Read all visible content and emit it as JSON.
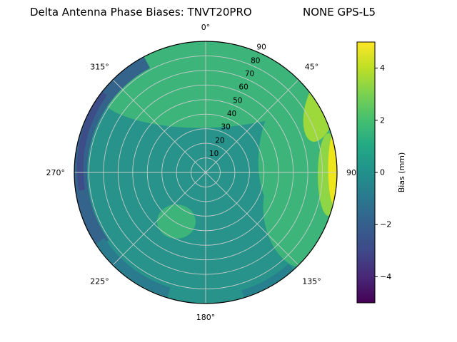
{
  "title": {
    "left": "Delta Antenna Phase Biases: TNVT20PRO",
    "right": "NONE GPS-L5"
  },
  "chart_data": {
    "type": "heatmap",
    "projection": "polar",
    "title": "Delta Antenna Phase Biases: TNVT20PRO      NONE GPS-L5",
    "antenna": "TNVT20PRO",
    "signal": "NONE GPS-L5",
    "colormap": "viridis",
    "colorbar": {
      "label": "Bias (mm)",
      "vmin": -5,
      "vmax": 5,
      "ticks": [
        {
          "value": 4,
          "label": "4"
        },
        {
          "value": 2,
          "label": "2"
        },
        {
          "value": 0,
          "label": "0"
        },
        {
          "value": -2,
          "label": "−2"
        },
        {
          "value": -4,
          "label": "−4"
        }
      ]
    },
    "angular_axis": {
      "unit": "degrees azimuth, 0 at top, clockwise",
      "ticks": [
        {
          "deg": 0,
          "label": "0°"
        },
        {
          "deg": 45,
          "label": "45°"
        },
        {
          "deg": 90,
          "label": "90"
        },
        {
          "deg": 135,
          "label": "135°"
        },
        {
          "deg": 180,
          "label": "180°"
        },
        {
          "deg": 225,
          "label": "225°"
        },
        {
          "deg": 270,
          "label": "270°"
        },
        {
          "deg": 315,
          "label": "315°"
        }
      ]
    },
    "radial_axis": {
      "unit": "elevation rings, 10 inner to 90 outer",
      "ticks": [
        {
          "r": 10,
          "label": "10"
        },
        {
          "r": 20,
          "label": "20"
        },
        {
          "r": 30,
          "label": "30"
        },
        {
          "r": 40,
          "label": "40"
        },
        {
          "r": 50,
          "label": "50"
        },
        {
          "r": 60,
          "label": "60"
        },
        {
          "r": 70,
          "label": "70"
        },
        {
          "r": 80,
          "label": "80"
        },
        {
          "r": 90,
          "label": "90"
        }
      ]
    },
    "regions": [
      {
        "area": "overall background of disc",
        "bias_mm": 0,
        "color": "#27938a"
      },
      {
        "area": "upper band, azimuth ~300°–70°, mid/outer radii",
        "bias_mm": 1.5,
        "color": "#3db47a"
      },
      {
        "area": "right side, azimuth ~45°–135°",
        "bias_mm": 2,
        "color": "#3db47a"
      },
      {
        "area": "upper-right patch near rim, azimuth ~55°–75°",
        "bias_mm": 3,
        "color": "#9ed93c"
      },
      {
        "area": "right rim sliver, azimuth ~85°–105°",
        "bias_mm": 4.5,
        "color": "#efe51c"
      },
      {
        "area": "small bright spot, azimuth ~60°, near rim",
        "bias_mm": 4,
        "color": "#dce319"
      },
      {
        "area": "left rim crescent, azimuth ~235°–330°",
        "bias_mm": -2,
        "color": "#34648c"
      },
      {
        "area": "left rim spot, azimuth ~262°–308°",
        "bias_mm": -3,
        "color": "#3d4d87"
      },
      {
        "area": "lower-left rim, azimuth ~197°–237°",
        "bias_mm": -1,
        "color": "#2b7b8e"
      },
      {
        "area": "lower-right rim, azimuth ~138°–163°",
        "bias_mm": -0.5,
        "color": "#27808d"
      },
      {
        "area": "inner blob, azimuth ~210°, mid radius",
        "bias_mm": 1.5,
        "color": "#3db47a"
      }
    ]
  },
  "colors": {
    "background": "#ffffff",
    "grid": "#cdcdcd",
    "outline": "#000000",
    "base_teal": "#27938a",
    "green": "#3db47a",
    "yellow": "#efe51c",
    "dark_blue": "#34648c"
  }
}
